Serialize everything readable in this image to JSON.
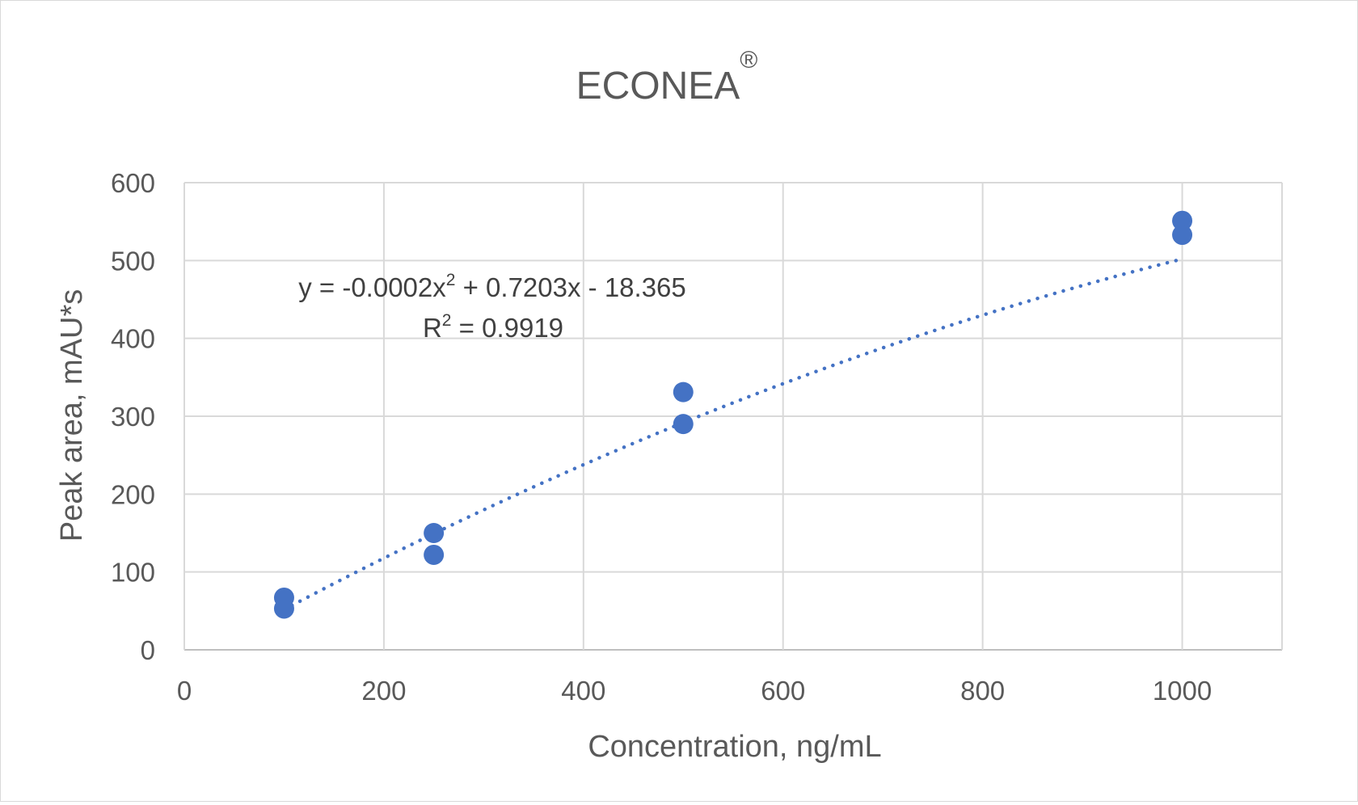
{
  "chart_data": {
    "type": "scatter",
    "title": "ECONEA",
    "title_superscript": "®",
    "xlabel": "Concentration, ng/mL",
    "ylabel": "Peak area, mAU*s",
    "xlim": [
      0,
      1100
    ],
    "ylim": [
      0,
      600
    ],
    "x_ticks": [
      0,
      200,
      400,
      600,
      800,
      1000
    ],
    "y_ticks": [
      0,
      100,
      200,
      300,
      400,
      500,
      600
    ],
    "grid": true,
    "series": [
      {
        "name": "Peak area",
        "color": "#4472c4",
        "points": [
          {
            "x": 100,
            "y": 67
          },
          {
            "x": 100,
            "y": 53
          },
          {
            "x": 250,
            "y": 150
          },
          {
            "x": 250,
            "y": 122
          },
          {
            "x": 500,
            "y": 331
          },
          {
            "x": 500,
            "y": 290
          },
          {
            "x": 1000,
            "y": 551
          },
          {
            "x": 1000,
            "y": 533
          }
        ]
      }
    ],
    "trendline": {
      "type": "polynomial",
      "order": 2,
      "style": "dotted",
      "color": "#4472c4",
      "x_range": [
        100,
        1000
      ],
      "coefficients": {
        "a": -0.0002,
        "b": 0.7203,
        "c": -18.365
      }
    },
    "equation": {
      "prefix": "y = -0.0002x",
      "exponent": "2",
      "suffix": " + 0.7203x - 18.365",
      "r2_label": "R",
      "r2_exponent": "2",
      "r2_value": " = 0.9919"
    }
  }
}
